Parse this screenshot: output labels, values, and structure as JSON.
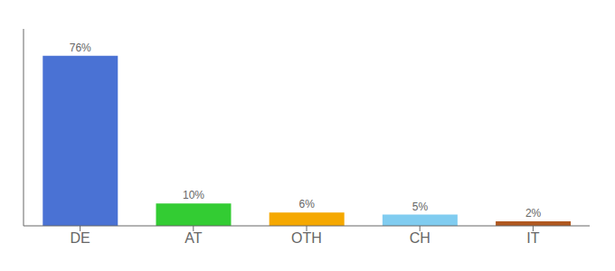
{
  "chart_data": {
    "type": "bar",
    "categories": [
      "DE",
      "AT",
      "OTH",
      "CH",
      "IT"
    ],
    "values": [
      76,
      10,
      6,
      5,
      2
    ],
    "value_labels": [
      "76%",
      "10%",
      "6%",
      "5%",
      "2%"
    ],
    "colors": [
      "#4a72d4",
      "#33cc33",
      "#f5a800",
      "#80ccf0",
      "#b05820"
    ],
    "ylim": [
      0,
      88
    ],
    "data_labels": true,
    "tick_labels": "x",
    "grid": false
  }
}
